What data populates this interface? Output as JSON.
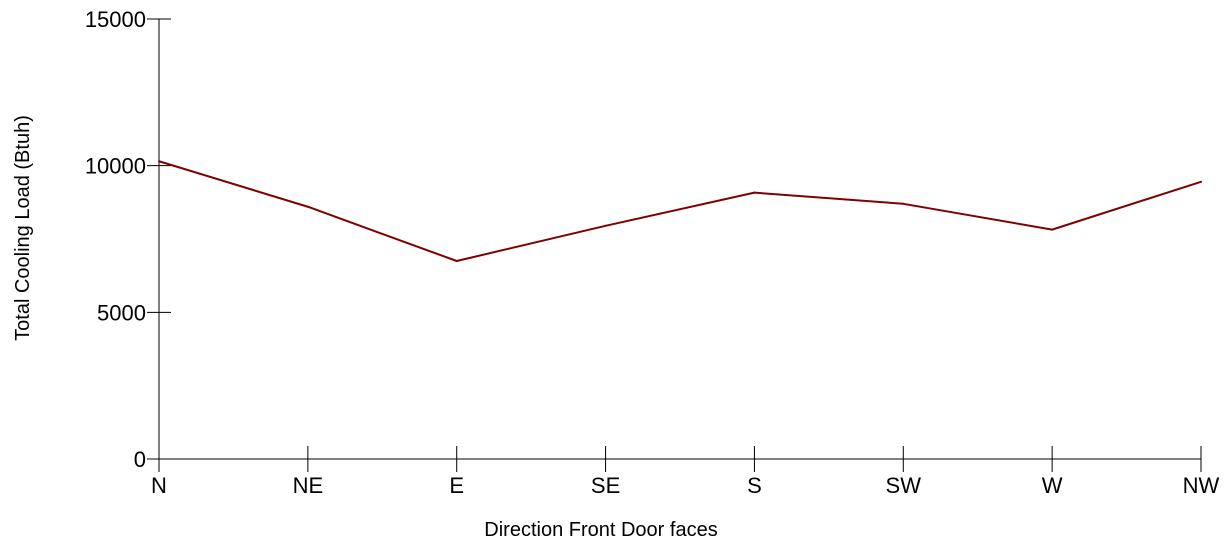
{
  "chart_data": {
    "type": "line",
    "categories": [
      "N",
      "NE",
      "E",
      "SE",
      "S",
      "SW",
      "W",
      "NW"
    ],
    "series": [
      {
        "values": [
          10150,
          8600,
          6750,
          7950,
          9080,
          8700,
          7820,
          9450
        ],
        "color": "#800000"
      }
    ],
    "xlabel": "Direction Front Door faces",
    "ylabel": "Total Cooling Load (Btuh)",
    "ylim": [
      0,
      15000
    ],
    "yticks": [
      0,
      5000,
      10000,
      15000
    ],
    "grid": false,
    "legend": "none"
  }
}
